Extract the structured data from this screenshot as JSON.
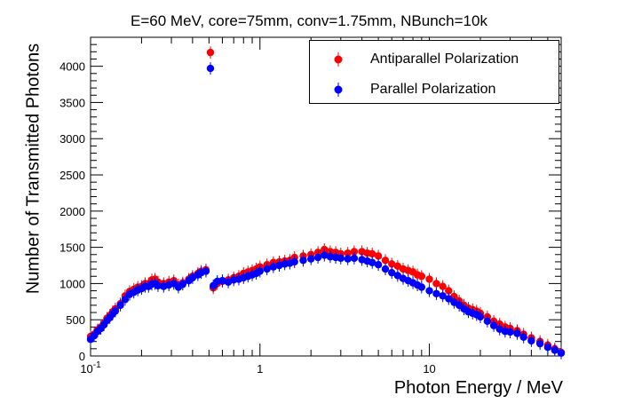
{
  "chart_data": {
    "type": "scatter",
    "title": "E=60 MeV, core=75mm, conv=1.75mm, NBunch=10k",
    "xlabel": "Photon Energy / MeV",
    "ylabel": "Number of Transmitted Photons",
    "xscale": "log",
    "xlim": [
      0.1,
      60
    ],
    "ylim": [
      0,
      4400
    ],
    "y_ticks": [
      "0",
      "500",
      "1000",
      "1500",
      "2000",
      "2500",
      "3000",
      "3500",
      "4000"
    ],
    "x_tick_labels": [
      "10^-1",
      "1",
      "10"
    ],
    "legend_position": "top-right",
    "grid": false,
    "series": [
      {
        "name": "Antiparallel Polarization",
        "color": "#ff0000",
        "points": [
          [
            0.1,
            270
          ],
          [
            0.105,
            300
          ],
          [
            0.11,
            360
          ],
          [
            0.115,
            400
          ],
          [
            0.12,
            450
          ],
          [
            0.125,
            520
          ],
          [
            0.13,
            560
          ],
          [
            0.135,
            610
          ],
          [
            0.14,
            650
          ],
          [
            0.15,
            720
          ],
          [
            0.16,
            830
          ],
          [
            0.17,
            890
          ],
          [
            0.18,
            920
          ],
          [
            0.19,
            950
          ],
          [
            0.2,
            960
          ],
          [
            0.21,
            1000
          ],
          [
            0.22,
            1000
          ],
          [
            0.23,
            1050
          ],
          [
            0.24,
            1060
          ],
          [
            0.25,
            1020
          ],
          [
            0.27,
            1000
          ],
          [
            0.29,
            1020
          ],
          [
            0.31,
            1040
          ],
          [
            0.33,
            980
          ],
          [
            0.35,
            1010
          ],
          [
            0.38,
            1060
          ],
          [
            0.4,
            1100
          ],
          [
            0.43,
            1140
          ],
          [
            0.45,
            1170
          ],
          [
            0.48,
            1190
          ],
          [
            0.51,
            4190
          ],
          [
            0.53,
            940
          ],
          [
            0.56,
            1000
          ],
          [
            0.6,
            1030
          ],
          [
            0.65,
            1050
          ],
          [
            0.7,
            1080
          ],
          [
            0.75,
            1100
          ],
          [
            0.8,
            1140
          ],
          [
            0.85,
            1160
          ],
          [
            0.9,
            1180
          ],
          [
            0.95,
            1200
          ],
          [
            1.0,
            1230
          ],
          [
            1.1,
            1260
          ],
          [
            1.2,
            1290
          ],
          [
            1.3,
            1300
          ],
          [
            1.4,
            1310
          ],
          [
            1.5,
            1320
          ],
          [
            1.6,
            1360
          ],
          [
            1.8,
            1380
          ],
          [
            2.0,
            1400
          ],
          [
            2.2,
            1430
          ],
          [
            2.4,
            1470
          ],
          [
            2.6,
            1440
          ],
          [
            2.8,
            1430
          ],
          [
            3.0,
            1410
          ],
          [
            3.3,
            1420
          ],
          [
            3.6,
            1440
          ],
          [
            4.0,
            1440
          ],
          [
            4.3,
            1420
          ],
          [
            4.6,
            1410
          ],
          [
            5.0,
            1380
          ],
          [
            5.5,
            1320
          ],
          [
            6.0,
            1270
          ],
          [
            6.5,
            1240
          ],
          [
            7.0,
            1200
          ],
          [
            7.5,
            1180
          ],
          [
            8.0,
            1160
          ],
          [
            8.5,
            1120
          ],
          [
            9.0,
            1100
          ],
          [
            10.0,
            1060
          ],
          [
            11.0,
            1000
          ],
          [
            12.0,
            960
          ],
          [
            13.0,
            900
          ],
          [
            14.0,
            820
          ],
          [
            15.0,
            760
          ],
          [
            16.0,
            700
          ],
          [
            17.0,
            660
          ],
          [
            18.0,
            640
          ],
          [
            19.0,
            620
          ],
          [
            20.0,
            590
          ],
          [
            22.0,
            540
          ],
          [
            24.0,
            480
          ],
          [
            26.0,
            440
          ],
          [
            28.0,
            400
          ],
          [
            30.0,
            380
          ],
          [
            33.0,
            350
          ],
          [
            36.0,
            300
          ],
          [
            40.0,
            250
          ],
          [
            45.0,
            200
          ],
          [
            50.0,
            150
          ],
          [
            55.0,
            100
          ],
          [
            60.0,
            50
          ]
        ]
      },
      {
        "name": "Parallel Polarization",
        "color": "#0000ff",
        "points": [
          [
            0.1,
            230
          ],
          [
            0.105,
            280
          ],
          [
            0.11,
            340
          ],
          [
            0.115,
            380
          ],
          [
            0.12,
            430
          ],
          [
            0.125,
            490
          ],
          [
            0.13,
            530
          ],
          [
            0.135,
            580
          ],
          [
            0.14,
            620
          ],
          [
            0.15,
            700
          ],
          [
            0.16,
            780
          ],
          [
            0.17,
            850
          ],
          [
            0.18,
            880
          ],
          [
            0.19,
            910
          ],
          [
            0.2,
            930
          ],
          [
            0.21,
            960
          ],
          [
            0.22,
            960
          ],
          [
            0.23,
            990
          ],
          [
            0.24,
            1000
          ],
          [
            0.25,
            970
          ],
          [
            0.27,
            960
          ],
          [
            0.29,
            980
          ],
          [
            0.31,
            1000
          ],
          [
            0.33,
            950
          ],
          [
            0.35,
            990
          ],
          [
            0.38,
            1040
          ],
          [
            0.4,
            1080
          ],
          [
            0.43,
            1120
          ],
          [
            0.45,
            1150
          ],
          [
            0.48,
            1170
          ],
          [
            0.51,
            3970
          ],
          [
            0.53,
            970
          ],
          [
            0.56,
            1030
          ],
          [
            0.6,
            1040
          ],
          [
            0.65,
            1020
          ],
          [
            0.7,
            1050
          ],
          [
            0.75,
            1060
          ],
          [
            0.8,
            1080
          ],
          [
            0.85,
            1100
          ],
          [
            0.9,
            1120
          ],
          [
            0.95,
            1140
          ],
          [
            1.0,
            1170
          ],
          [
            1.1,
            1200
          ],
          [
            1.2,
            1230
          ],
          [
            1.3,
            1250
          ],
          [
            1.4,
            1270
          ],
          [
            1.5,
            1280
          ],
          [
            1.6,
            1300
          ],
          [
            1.8,
            1320
          ],
          [
            2.0,
            1340
          ],
          [
            2.2,
            1360
          ],
          [
            2.4,
            1390
          ],
          [
            2.6,
            1370
          ],
          [
            2.8,
            1360
          ],
          [
            3.0,
            1350
          ],
          [
            3.3,
            1340
          ],
          [
            3.6,
            1350
          ],
          [
            4.0,
            1330
          ],
          [
            4.3,
            1310
          ],
          [
            4.6,
            1290
          ],
          [
            5.0,
            1260
          ],
          [
            5.5,
            1200
          ],
          [
            6.0,
            1150
          ],
          [
            6.5,
            1110
          ],
          [
            7.0,
            1070
          ],
          [
            7.5,
            1040
          ],
          [
            8.0,
            1010
          ],
          [
            8.5,
            980
          ],
          [
            9.0,
            950
          ],
          [
            10.0,
            900
          ],
          [
            11.0,
            860
          ],
          [
            12.0,
            830
          ],
          [
            13.0,
            790
          ],
          [
            14.0,
            740
          ],
          [
            15.0,
            700
          ],
          [
            16.0,
            650
          ],
          [
            17.0,
            610
          ],
          [
            18.0,
            590
          ],
          [
            19.0,
            570
          ],
          [
            20.0,
            540
          ],
          [
            22.0,
            480
          ],
          [
            24.0,
            420
          ],
          [
            26.0,
            370
          ],
          [
            28.0,
            340
          ],
          [
            30.0,
            330
          ],
          [
            33.0,
            310
          ],
          [
            36.0,
            260
          ],
          [
            40.0,
            210
          ],
          [
            45.0,
            170
          ],
          [
            50.0,
            120
          ],
          [
            55.0,
            80
          ],
          [
            60.0,
            40
          ]
        ]
      }
    ]
  }
}
